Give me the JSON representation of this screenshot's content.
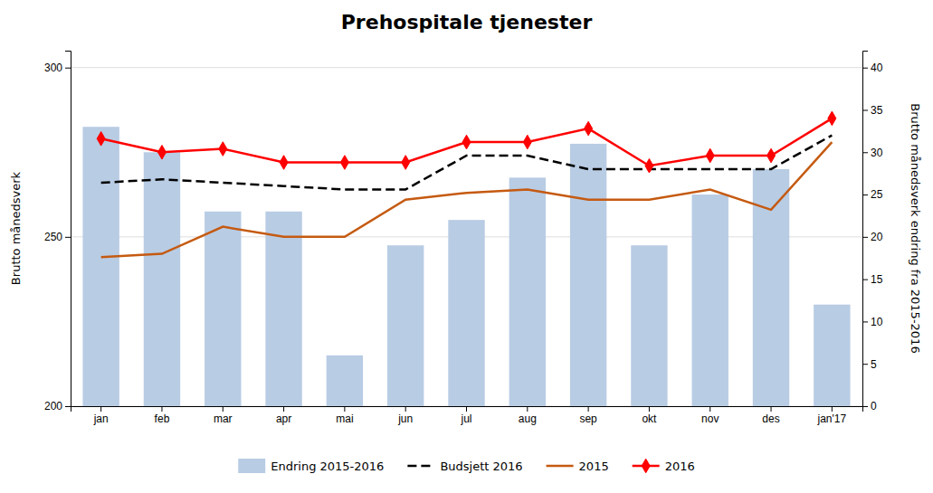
{
  "chart_data": {
    "type": "bar",
    "title": "Prehospitale tjenester",
    "categories": [
      "jan",
      "feb",
      "mar",
      "apr",
      "mai",
      "jun",
      "jul",
      "aug",
      "sep",
      "okt",
      "nov",
      "des",
      "jan'17"
    ],
    "series": [
      {
        "name": "Endring 2015-2016",
        "type": "bar",
        "axis": "y2",
        "color": "#b8cce4",
        "values": [
          33,
          30,
          23,
          23,
          6,
          19,
          22,
          27,
          31,
          19,
          25,
          28,
          12
        ]
      },
      {
        "name": "Budsjett 2016",
        "type": "line",
        "color": "#000000",
        "line_style": "dashed",
        "values": [
          266,
          267,
          266,
          265,
          264,
          264,
          274,
          274,
          270,
          270,
          270,
          270,
          280
        ]
      },
      {
        "name": "2015",
        "type": "line",
        "color": "#c55a11",
        "line_style": "solid",
        "values": [
          244,
          245,
          253,
          250,
          250,
          261,
          263,
          264,
          261,
          261,
          264,
          258,
          278
        ]
      },
      {
        "name": "2016",
        "type": "line",
        "color": "#ff0000",
        "line_style": "solid",
        "marker": "diamond",
        "values": [
          279,
          275,
          276,
          272,
          272,
          272,
          278,
          278,
          282,
          271,
          274,
          274,
          285
        ]
      }
    ],
    "ylabel": "Brutto månedsverk",
    "y2label": "Brutto månedsverk endring fra 2015-2016",
    "ylim": [
      200,
      305
    ],
    "yticks": [
      200,
      250,
      300
    ],
    "y2lim": [
      0,
      42
    ],
    "y2ticks": [
      0,
      5,
      10,
      15,
      20,
      25,
      30,
      35,
      40
    ],
    "grid": true,
    "legend": "bottom"
  }
}
